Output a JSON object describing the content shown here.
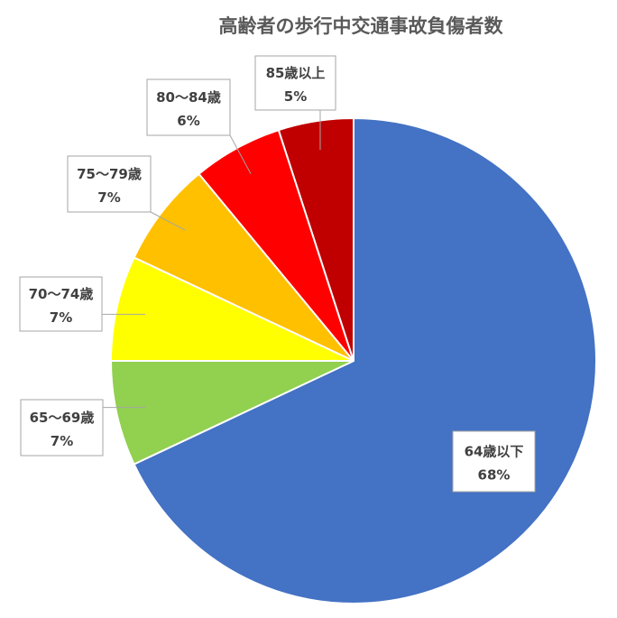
{
  "chart_data": {
    "type": "pie",
    "title": "高齢者の歩行中交通事故負傷者数",
    "start_angle": "12 o'clock, clockwise",
    "legend": "none (data callouts)",
    "slices": [
      {
        "label": "64歳以下",
        "value": 68,
        "display": "68%",
        "color": "#4472C4"
      },
      {
        "label": "65〜69歳",
        "value": 7,
        "display": "7%",
        "color": "#92D050"
      },
      {
        "label": "70〜74歳",
        "value": 7,
        "display": "7%",
        "color": "#FFFF00"
      },
      {
        "label": "75〜79歳",
        "value": 7,
        "display": "7%",
        "color": "#FFC000"
      },
      {
        "label": "80〜84歳",
        "value": 6,
        "display": "6%",
        "color": "#FF0000"
      },
      {
        "label": "85歳以上",
        "value": 5,
        "display": "5%",
        "color": "#C00000"
      }
    ]
  }
}
